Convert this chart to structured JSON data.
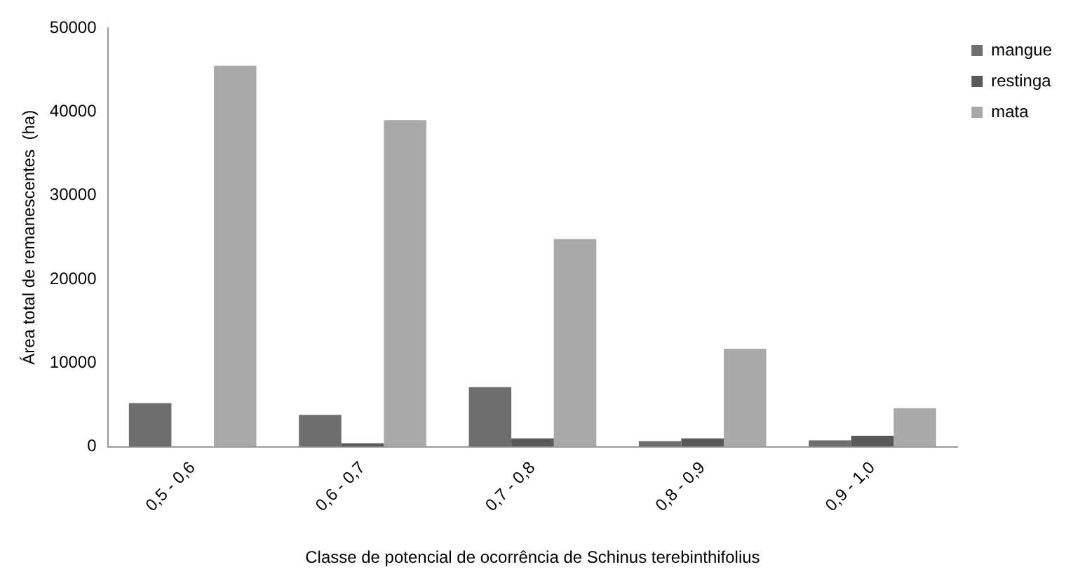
{
  "chart_data": {
    "type": "bar",
    "xlabel": "Classe de potencial de ocorrência de Schinus terebinthifolius",
    "ylabel": "Área total de remanescentes  (ha)",
    "categories": [
      "0,5 - 0,6",
      "0,6 - 0,7",
      "0,7 - 0,8",
      "0,8 - 0,9",
      "0,9 - 1,0"
    ],
    "series": [
      {
        "name": "mangue",
        "color": "#6e6e6e",
        "values": [
          5200,
          3800,
          7100,
          650,
          750
        ]
      },
      {
        "name": "restinga",
        "color": "#595959",
        "values": [
          0,
          400,
          1000,
          1000,
          1300
        ]
      },
      {
        "name": "mata",
        "color": "#a9a9a9",
        "values": [
          45500,
          39000,
          24800,
          11700,
          4600
        ]
      }
    ],
    "ylim": [
      0,
      50000
    ],
    "yticks": [
      0,
      10000,
      20000,
      30000,
      40000,
      50000
    ],
    "grid": false,
    "legend": "top right"
  }
}
